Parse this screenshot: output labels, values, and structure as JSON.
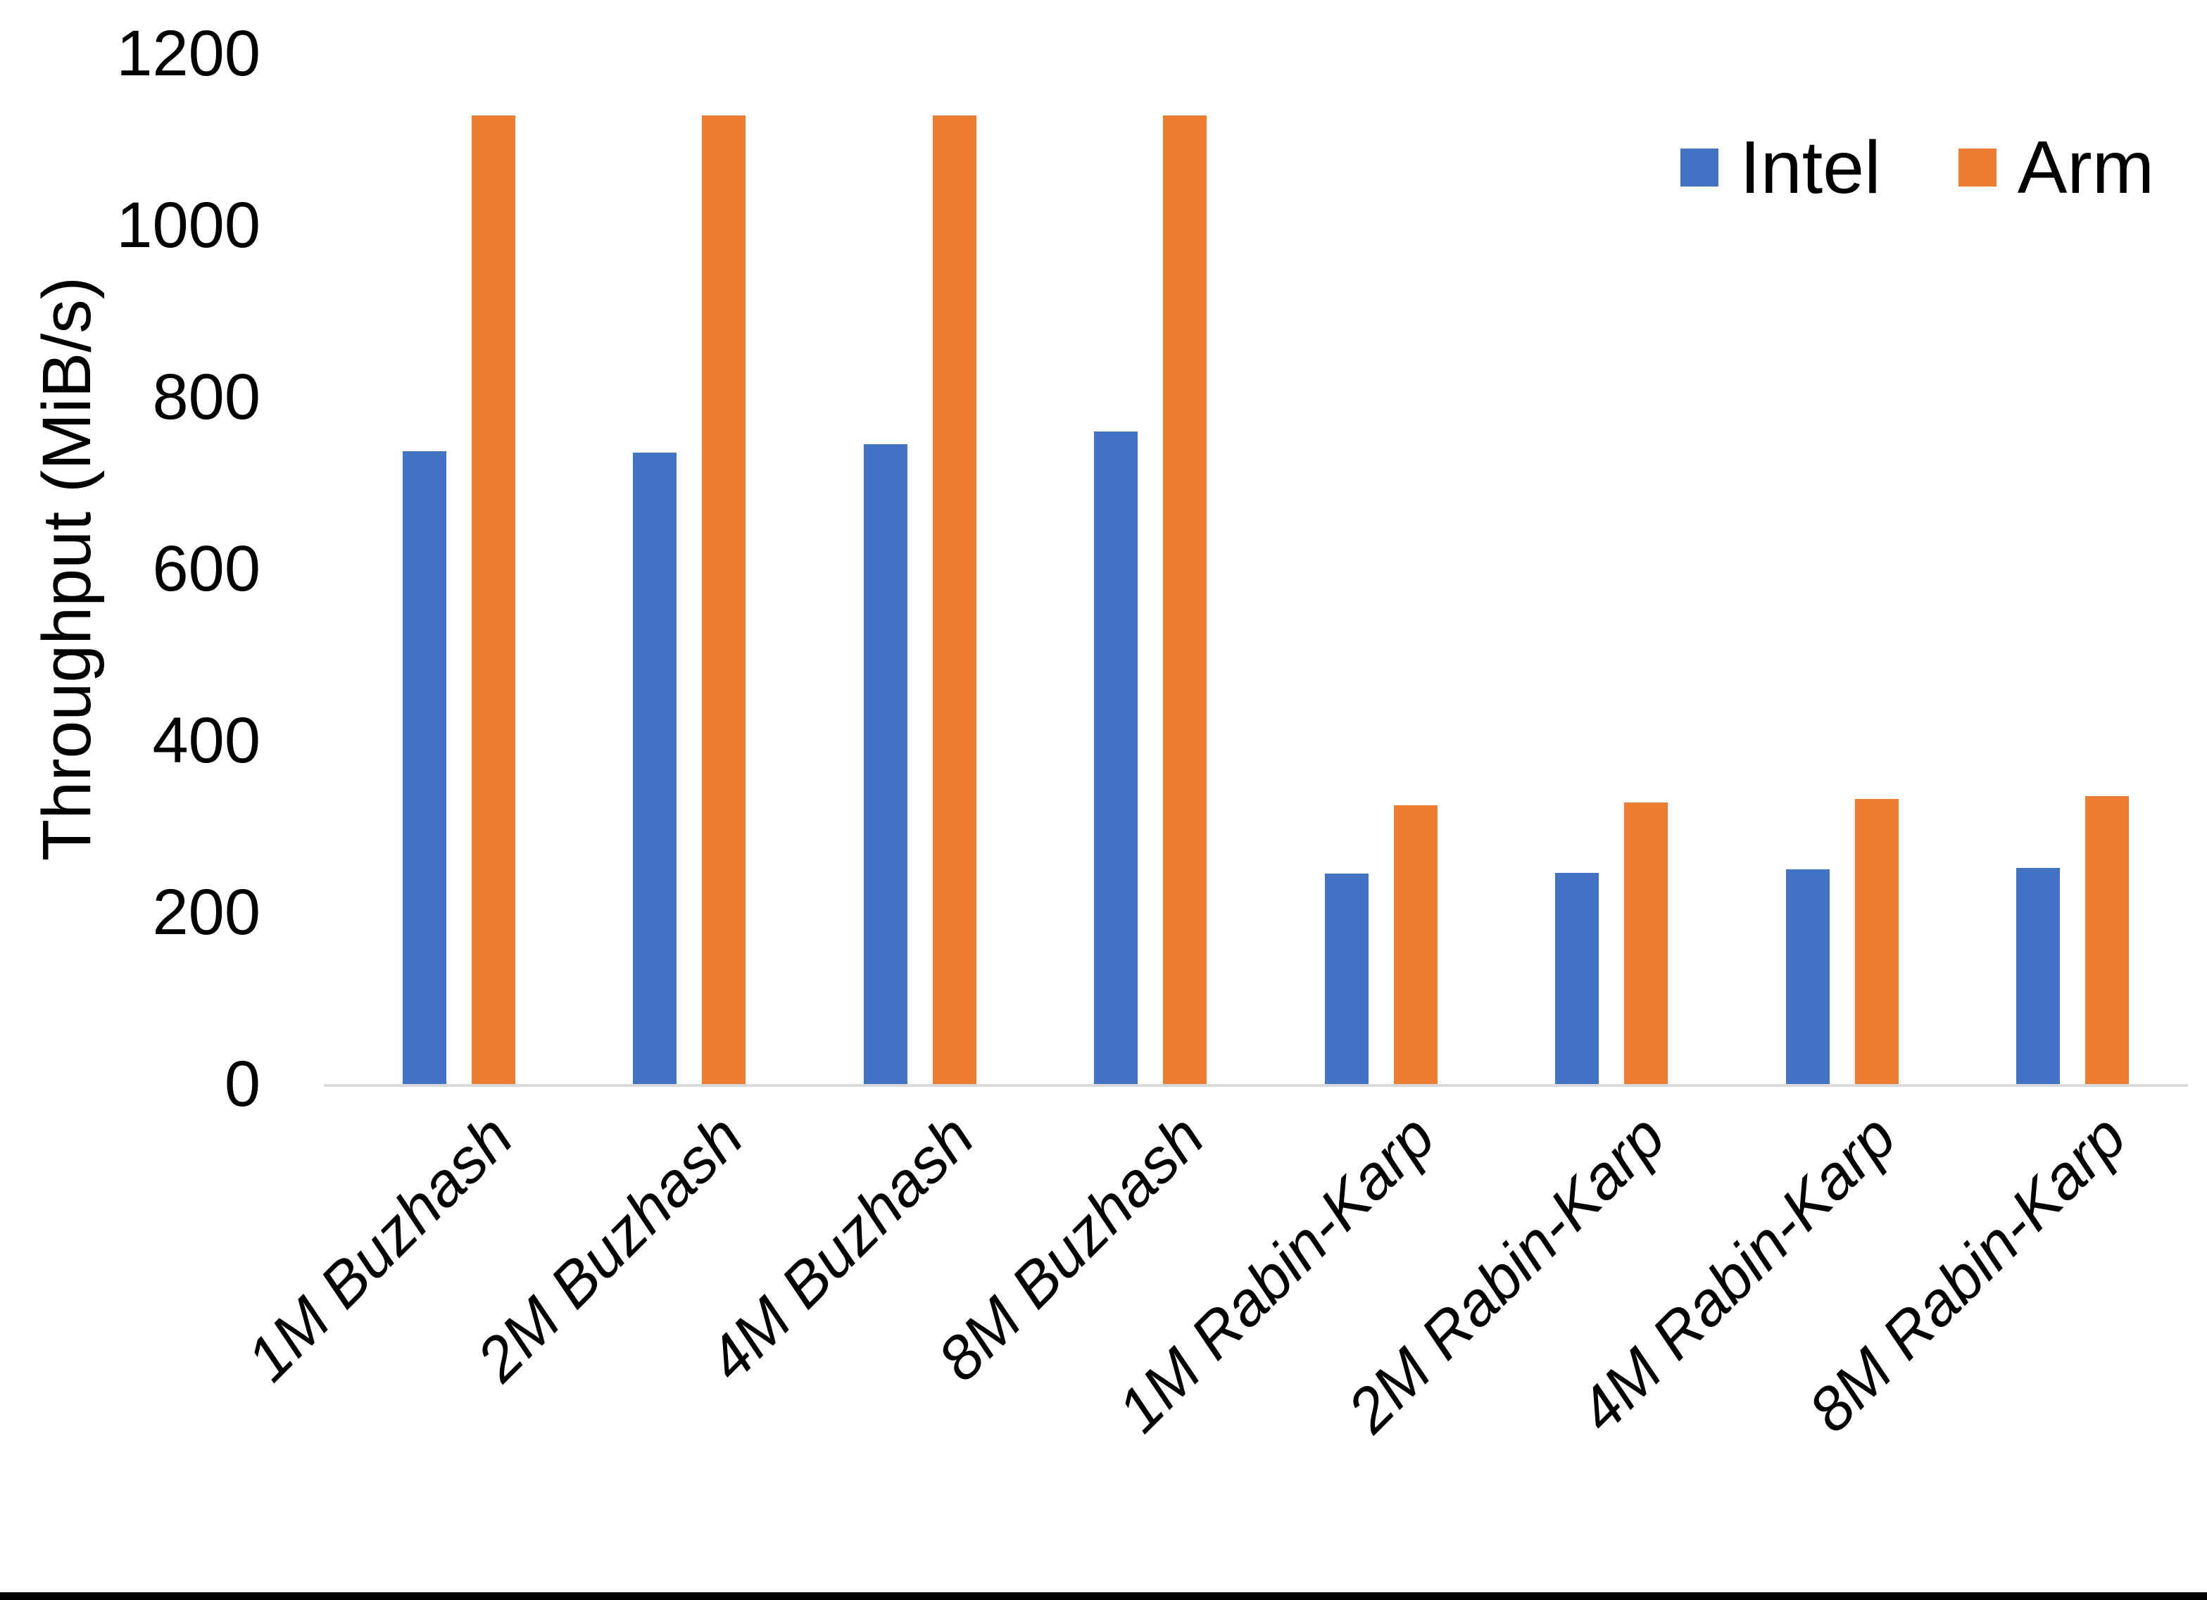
{
  "figure": {
    "y_axis_title": "Throughput (MiB/s)"
  },
  "legend": {
    "items": [
      {
        "label": "Intel",
        "color": "#4472C4"
      },
      {
        "label": "Arm",
        "color": "#ED7D31"
      }
    ]
  },
  "chart_data": {
    "type": "bar",
    "title": "",
    "categories": [
      "1M Buzhash",
      "2M Buzhash",
      "4M Buzhash",
      "8M Buzhash",
      "1M Rabin-Karp",
      "2M Rabin-Karp",
      "4M Rabin-Karp",
      "8M Rabin-Karp"
    ],
    "series": [
      {
        "name": "Intel",
        "color": "#4472C4",
        "values": [
          737,
          735,
          745,
          760,
          245,
          246,
          250,
          252
        ]
      },
      {
        "name": "Arm",
        "color": "#ED7D31",
        "values": [
          1128,
          1128,
          1128,
          1128,
          325,
          328,
          332,
          335
        ]
      }
    ],
    "xlabel": "",
    "ylabel": "Throughput (MiB/s)",
    "ylim": [
      0,
      1200
    ],
    "ytick_step": 200,
    "ytick_labels": [
      "0",
      "200",
      "400",
      "600",
      "800",
      "1000",
      "1200"
    ],
    "grid": false,
    "legend_position": "top-right",
    "axis_line_color": "#D9D9D9",
    "bar_color_intel": "#4472C4",
    "bar_color_arm": "#ED7D31"
  }
}
